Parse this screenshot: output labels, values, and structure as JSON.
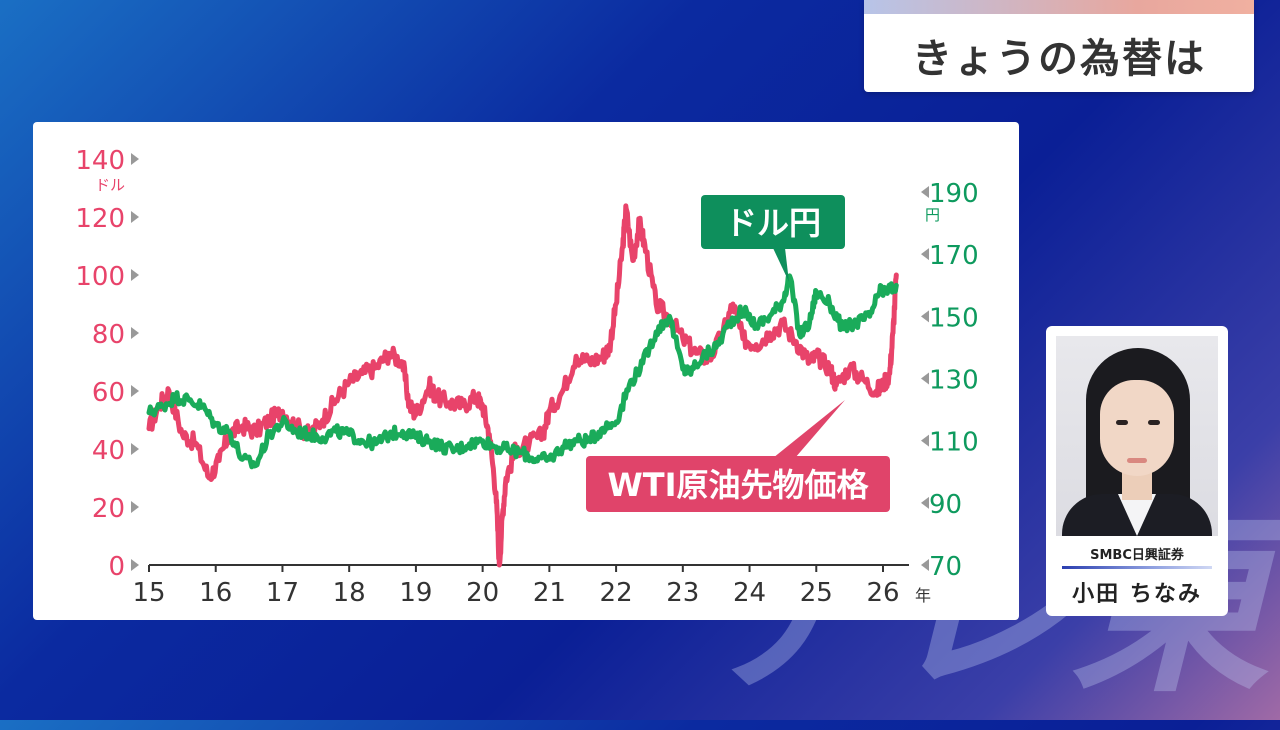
{
  "header": {
    "title": "きょうの為替は"
  },
  "watermark": "テレ東",
  "person": {
    "company": "SMBC日興証券",
    "name": "小田 ちなみ"
  },
  "chart_data": {
    "type": "line",
    "x_unit": "年",
    "x_ticks": [
      "15",
      "16",
      "17",
      "18",
      "19",
      "20",
      "21",
      "22",
      "23",
      "24",
      "25",
      "26"
    ],
    "left_axis": {
      "unit": "ドル",
      "range": [
        0,
        140
      ],
      "ticks": [
        "0",
        "20",
        "40",
        "60",
        "80",
        "100",
        "120",
        "140"
      ],
      "color": "#e8436a"
    },
    "right_axis": {
      "unit": "円",
      "range": [
        70,
        190
      ],
      "ticks": [
        "70",
        "90",
        "110",
        "130",
        "150",
        "170",
        "190"
      ],
      "color": "#0e9a5e"
    },
    "grid": false,
    "series": [
      {
        "name": "WTI原油先物価格",
        "axis": "left",
        "color": "#e8436a",
        "x": [
          15.0,
          15.15,
          15.3,
          15.5,
          15.7,
          15.9,
          16.05,
          16.2,
          16.4,
          16.6,
          16.8,
          17.0,
          17.2,
          17.4,
          17.6,
          17.8,
          18.0,
          18.2,
          18.4,
          18.6,
          18.8,
          18.9,
          19.0,
          19.2,
          19.3,
          19.5,
          19.7,
          19.9,
          20.0,
          20.1,
          20.2,
          20.25,
          20.3,
          20.35,
          20.5,
          20.7,
          20.9,
          21.0,
          21.2,
          21.4,
          21.6,
          21.8,
          21.9,
          22.0,
          22.1,
          22.15,
          22.25,
          22.35,
          22.45,
          22.6,
          22.8,
          23.0,
          23.2,
          23.4,
          23.6,
          23.75,
          23.9,
          24.1,
          24.3,
          24.5,
          24.7,
          24.9,
          25.0,
          25.2,
          25.3,
          25.5,
          25.7,
          25.9,
          26.0,
          26.1,
          26.15,
          26.2
        ],
        "values": [
          47,
          55,
          60,
          45,
          42,
          30,
          36,
          45,
          48,
          46,
          50,
          53,
          48,
          45,
          50,
          57,
          63,
          66,
          68,
          73,
          70,
          55,
          52,
          62,
          58,
          56,
          55,
          58,
          55,
          45,
          25,
          0,
          18,
          30,
          40,
          42,
          45,
          53,
          60,
          72,
          70,
          72,
          75,
          90,
          110,
          123,
          105,
          118,
          108,
          90,
          85,
          78,
          73,
          71,
          80,
          90,
          78,
          76,
          80,
          83,
          77,
          70,
          72,
          68,
          62,
          68,
          64,
          60,
          62,
          66,
          80,
          100
        ]
      },
      {
        "name": "ドル円",
        "axis": "right",
        "color": "#1aab5a",
        "x": [
          15.0,
          15.2,
          15.4,
          15.6,
          15.8,
          16.0,
          16.2,
          16.4,
          16.6,
          16.8,
          17.0,
          17.2,
          17.4,
          17.6,
          17.8,
          18.0,
          18.2,
          18.4,
          18.6,
          18.8,
          19.0,
          19.2,
          19.4,
          19.6,
          19.8,
          20.0,
          20.2,
          20.4,
          20.6,
          20.8,
          21.0,
          21.2,
          21.4,
          21.6,
          21.8,
          22.0,
          22.2,
          22.4,
          22.6,
          22.8,
          23.0,
          23.1,
          23.3,
          23.5,
          23.7,
          23.9,
          24.1,
          24.3,
          24.5,
          24.6,
          24.75,
          24.9,
          25.0,
          25.2,
          25.4,
          25.6,
          25.8,
          25.95,
          26.05,
          26.2
        ],
        "values": [
          119,
          121,
          124,
          123,
          121,
          115,
          113,
          104,
          102,
          112,
          116,
          113,
          112,
          111,
          113,
          112,
          110,
          109,
          112,
          113,
          111,
          110,
          108,
          107,
          109,
          110,
          108,
          107,
          106,
          104,
          104,
          108,
          110,
          110,
          114,
          116,
          128,
          135,
          145,
          150,
          133,
          132,
          137,
          140,
          148,
          152,
          147,
          150,
          155,
          163,
          144,
          148,
          158,
          154,
          146,
          148,
          150,
          158,
          158,
          160
        ]
      }
    ],
    "annotations": [
      {
        "text": "ドル円",
        "target": "ドル円"
      },
      {
        "text": "WTI原油先物価格",
        "target": "WTI原油先物価格"
      }
    ]
  }
}
